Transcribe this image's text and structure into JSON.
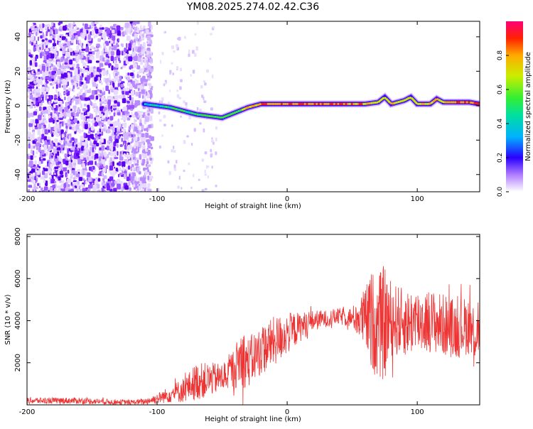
{
  "chart_data": [
    {
      "type": "heatmap",
      "title": "YM08.2025.274.02.42.C36",
      "xlabel": "Height of straight line (km)",
      "ylabel": "Frequency (Hz)",
      "xlim": [
        -200,
        148
      ],
      "ylim": [
        -50,
        49
      ],
      "x_ticks": [
        -200,
        -100,
        0,
        100
      ],
      "y_ticks": [
        -40,
        -20,
        0,
        20,
        40
      ],
      "colorbar": {
        "label": "Normalized spectral amplitude",
        "range": [
          0,
          1
        ],
        "ticks": [
          0.0,
          0.2,
          0.4,
          0.6,
          0.8
        ],
        "tick_labels": [
          "0.0",
          "0.2",
          "0.4",
          "0.6",
          "0.8"
        ]
      },
      "ridge": {
        "x": [
          -110,
          -100,
          -90,
          -80,
          -70,
          -60,
          -50,
          -40,
          -30,
          -20,
          -10,
          0,
          20,
          40,
          60,
          70,
          75,
          80,
          90,
          95,
          100,
          110,
          115,
          120,
          130,
          140,
          148
        ],
        "freq_hz": [
          1,
          0,
          -1,
          -3,
          -5,
          -6,
          -7,
          -4,
          -1,
          1,
          1,
          1,
          1,
          1,
          1,
          2,
          5,
          1,
          3,
          5,
          1,
          1,
          4,
          2,
          2,
          2,
          1
        ],
        "peak_amplitude": [
          0.5,
          0.5,
          0.6,
          0.6,
          0.6,
          0.65,
          0.65,
          0.7,
          0.85,
          0.95,
          0.95,
          0.95,
          0.95,
          0.95,
          0.9,
          0.8,
          0.8,
          0.85,
          0.8,
          0.8,
          0.85,
          0.9,
          0.85,
          0.9,
          0.95,
          0.95,
          0.95
        ]
      }
    },
    {
      "type": "line",
      "xlabel": "Height of straight line (km)",
      "ylabel": "SNR (10 * v/v)",
      "xlim": [
        -200,
        148
      ],
      "ylim": [
        0,
        8100
      ],
      "x_ticks": [
        -200,
        -100,
        0,
        100
      ],
      "y_ticks": [
        2000,
        4000,
        6000,
        8000
      ],
      "series": [
        {
          "name": "SNR",
          "color": "#ee3333",
          "x": [
            -200,
            -180,
            -160,
            -140,
            -120,
            -110,
            -100,
            -90,
            -80,
            -75,
            -70,
            -60,
            -50,
            -40,
            -35,
            -30,
            -20,
            -10,
            0,
            10,
            20,
            30,
            40,
            50,
            60,
            65,
            70,
            75,
            80,
            90,
            100,
            110,
            120,
            130,
            140,
            145,
            148
          ],
          "mean": [
            200,
            200,
            200,
            150,
            120,
            150,
            300,
            500,
            700,
            900,
            1100,
            1200,
            1300,
            1800,
            2300,
            2000,
            2600,
            3000,
            3400,
            3700,
            4000,
            4100,
            4200,
            4150,
            4100,
            4000,
            3700,
            3900,
            4100,
            3900,
            4000,
            4000,
            3800,
            3600,
            3800,
            3400,
            4000
          ],
          "spread": [
            150,
            150,
            150,
            130,
            120,
            150,
            250,
            400,
            600,
            700,
            900,
            800,
            700,
            1000,
            1500,
            1200,
            1200,
            1200,
            1000,
            700,
            500,
            400,
            400,
            500,
            1500,
            2400,
            2500,
            2800,
            1800,
            1600,
            1600,
            1500,
            1500,
            1400,
            1400,
            1400,
            1800
          ]
        }
      ]
    }
  ]
}
